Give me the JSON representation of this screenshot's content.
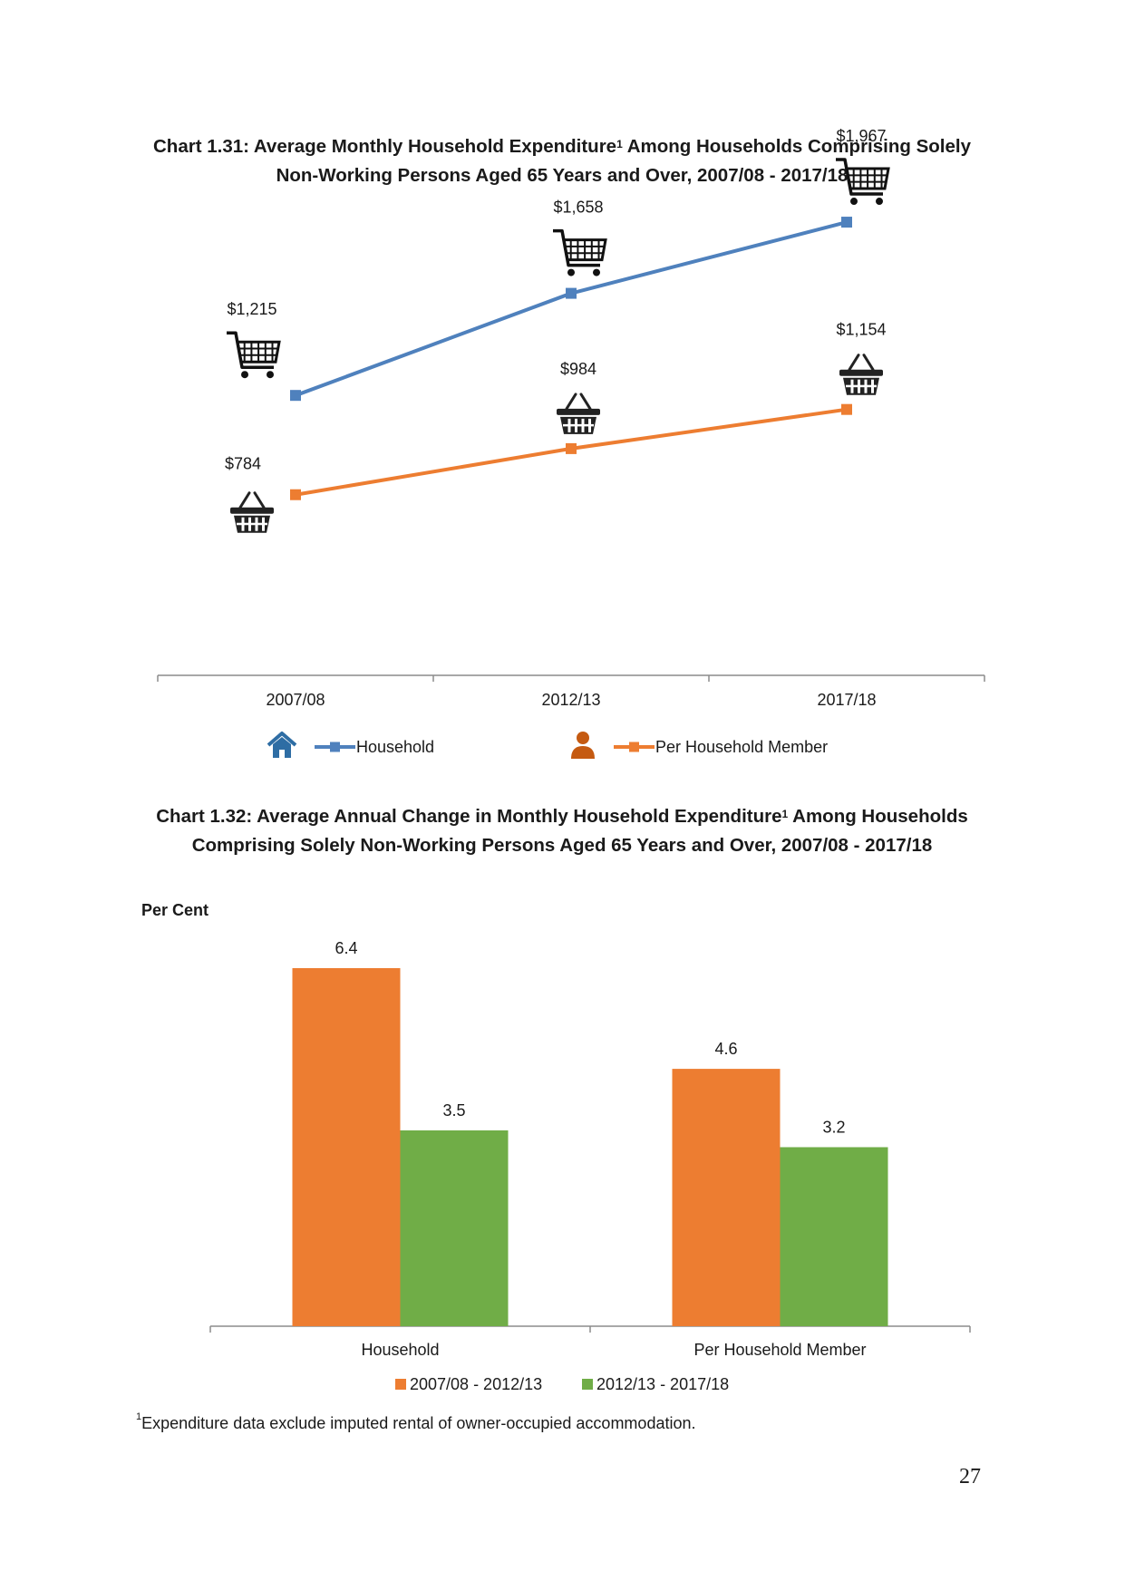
{
  "chart_data": [
    {
      "type": "line",
      "title": "Chart 1.31: Average Monthly Household Expenditure",
      "title_sup": "1",
      "title_rest": " Among Households Comprising Solely",
      "title_line2": "Non-Working Persons Aged 65 Years and Over, 2007/08 - 2017/18",
      "categories": [
        "2007/08",
        "2012/13",
        "2017/18"
      ],
      "series": [
        {
          "name": "Household",
          "values": [
            1215,
            1658,
            1967
          ],
          "labels": [
            "$1,215",
            "$1,658",
            "$1,967"
          ],
          "color": "#4f81bd",
          "marker_icon": "shopping-cart-icon"
        },
        {
          "name": "Per Household Member",
          "values": [
            784,
            984,
            1154
          ],
          "labels": [
            "$784",
            "$984",
            "$1,154"
          ],
          "color": "#ed7d31",
          "marker_icon": "basket-icon"
        }
      ],
      "legend_icons": {
        "household": "house-icon",
        "member": "person-icon"
      },
      "legend_position": "bottom",
      "ylim": [
        0,
        2400
      ],
      "grid": false
    },
    {
      "type": "bar",
      "title": "Chart 1.32: Average Annual Change in Monthly Household Expenditure",
      "title_sup": "1",
      "title_rest": " Among Households",
      "title_line2": "Comprising Solely Non-Working Persons Aged 65 Years and Over, 2007/08 - 2017/18",
      "ylabel": "Per Cent",
      "categories": [
        "Household",
        "Per Household Member"
      ],
      "series": [
        {
          "name": "2007/08 - 2012/13",
          "values": [
            6.4,
            4.6
          ],
          "color": "#ed7d31"
        },
        {
          "name": "2012/13 - 2017/18",
          "values": [
            3.5,
            3.2
          ],
          "color": "#70ad47"
        }
      ],
      "ylim": [
        0,
        6.4
      ],
      "legend_position": "bottom",
      "grid": false
    }
  ],
  "footnote": {
    "sup": "1",
    "text": "Expenditure data exclude imputed rental of owner-occupied accommodation."
  },
  "page_number": "27"
}
